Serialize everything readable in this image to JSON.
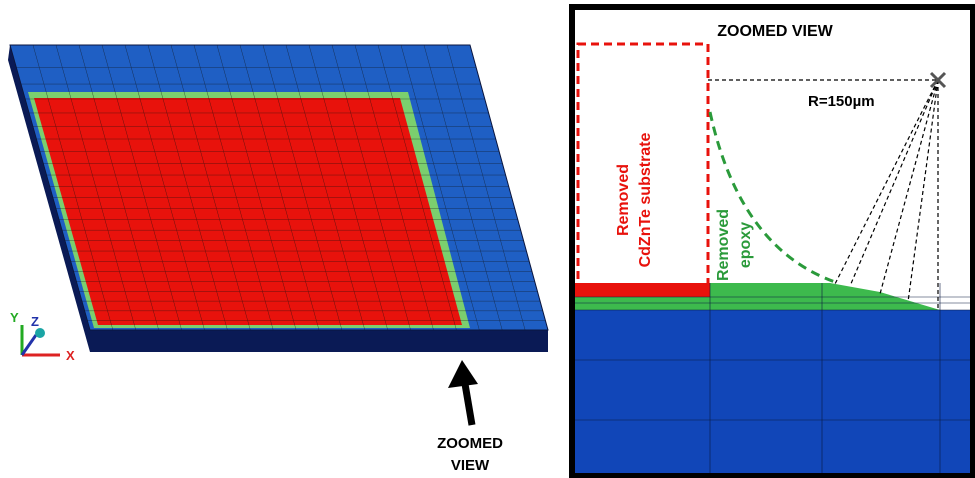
{
  "left_panel": {
    "axes": {
      "y": "Y",
      "z": "Z",
      "x": "X"
    },
    "arrow_label": [
      "ZOOMED",
      "VIEW"
    ]
  },
  "right_panel": {
    "title": "ZOOMED VIEW",
    "radius_label": "R=150µm",
    "substrate_label": [
      "Removed",
      "CdZnTe substrate"
    ],
    "epoxy_label": [
      "Removed",
      "epoxy"
    ]
  }
}
